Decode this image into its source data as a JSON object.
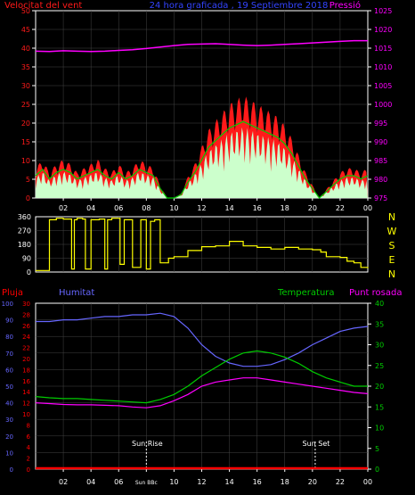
{
  "colors": {
    "background": "#000000",
    "panel_border": "#ffffff",
    "grid": "#444444",
    "wind": "#ff1a1a",
    "wind_gust": "#ccffcc",
    "wind_mean": "#00cc00",
    "pressure": "#ff00ff",
    "direction": "#ffff00",
    "rain": "#ff0000",
    "humidity": "#6666ff",
    "temperature": "#00cc00",
    "dewpoint": "#ff00ff",
    "axis_text": "#ffffff",
    "sun_marker": "#ffffff"
  },
  "panel1": {
    "title": "24 hora graficada , 19 Septiembre 2018",
    "left_label": "Velocitat del vent",
    "right_label": "Pressió"
  },
  "panel2": {
    "compass": [
      "N",
      "W",
      "S",
      "E",
      "N"
    ]
  },
  "panel3": {
    "labels": {
      "rain": "Pluja",
      "humidity": "Humitat",
      "temperature": "Temperatura",
      "dewpoint": "Punt rosada"
    },
    "sunrise": "Sun Rise",
    "sunset": "Sun Set",
    "sun_below": "Sun BBc"
  },
  "chart_data": [
    {
      "type": "line",
      "name": "wind-pressure",
      "title": "24 hora graficada , 19 Septiembre 2018",
      "x_ticks": [
        "02",
        "04",
        "06",
        "08",
        "10",
        "12",
        "14",
        "16",
        "18",
        "20",
        "22",
        "00"
      ],
      "xlim": [
        0,
        24
      ],
      "ylim": [
        0,
        50
      ],
      "y_ticks": [
        "0",
        "5",
        "10",
        "15",
        "20",
        "25",
        "30",
        "35",
        "40",
        "45",
        "50"
      ],
      "y2lim": [
        975,
        1025
      ],
      "y2_ticks": [
        "975",
        "980",
        "985",
        "990",
        "995",
        "1000",
        "1005",
        "1010",
        "1015",
        "1020",
        "1025"
      ],
      "ylabel": "Velocitat del vent",
      "y2label": "Pressió",
      "grid": true,
      "series": [
        {
          "name": "Velocitat del vent",
          "x": [
            0,
            0.5,
            1,
            1.5,
            2,
            2.5,
            3,
            3.5,
            4,
            4.5,
            5,
            5.5,
            6,
            6.5,
            7,
            7.5,
            8,
            8.5,
            9,
            9.5,
            10,
            10.5,
            11,
            11.5,
            12,
            12.5,
            13,
            13.5,
            14,
            14.5,
            15,
            15.5,
            16,
            16.5,
            17,
            17.5,
            18,
            18.5,
            19,
            19.5,
            20,
            20.5,
            21,
            21.5,
            22,
            22.5,
            23,
            23.5,
            24
          ],
          "values": [
            7,
            9,
            6,
            8,
            9,
            8,
            6,
            7,
            8,
            9,
            7,
            6,
            8,
            6,
            7,
            9,
            8,
            7,
            3,
            0,
            0,
            1,
            5,
            8,
            12,
            16,
            18,
            20,
            22,
            23,
            24,
            23,
            22,
            21,
            20,
            19,
            17,
            14,
            10,
            6,
            3,
            0,
            2,
            4,
            6,
            7,
            7,
            6,
            7
          ]
        },
        {
          "name": "Pressió",
          "x": [
            0,
            1,
            2,
            3,
            4,
            5,
            6,
            7,
            8,
            9,
            10,
            11,
            12,
            13,
            14,
            15,
            16,
            17,
            18,
            19,
            20,
            21,
            22,
            23,
            24
          ],
          "values": [
            1014.2,
            1014.1,
            1014.3,
            1014.2,
            1014.1,
            1014.2,
            1014.4,
            1014.6,
            1014.9,
            1015.3,
            1015.7,
            1016.0,
            1016.1,
            1016.2,
            1016.0,
            1015.8,
            1015.7,
            1015.8,
            1016.0,
            1016.2,
            1016.4,
            1016.6,
            1016.8,
            1017.0,
            1017.0
          ]
        }
      ]
    },
    {
      "type": "line",
      "name": "wind-direction",
      "x_ticks": [
        "02",
        "04",
        "06",
        "08",
        "10",
        "12",
        "14",
        "16",
        "18",
        "20",
        "22",
        "00"
      ],
      "xlim": [
        0,
        24
      ],
      "ylim": [
        0,
        360
      ],
      "y_ticks": [
        "0",
        "90",
        "180",
        "270",
        "360"
      ],
      "grid": true,
      "series": [
        {
          "name": "direction",
          "x": [
            0,
            0.8,
            1.0,
            1.5,
            2.0,
            2.6,
            2.8,
            3.0,
            3.4,
            3.6,
            4.0,
            4.6,
            5.0,
            5.2,
            5.5,
            6.1,
            6.4,
            7.0,
            7.3,
            7.6,
            8.0,
            8.3,
            8.6,
            9.0,
            9.6,
            10.0,
            11.0,
            12.0,
            13.0,
            14.0,
            15.0,
            16.0,
            17.0,
            18.0,
            19.0,
            20.0,
            20.6,
            21.0,
            22.0,
            22.5,
            23.0,
            23.5,
            24.0
          ],
          "values": [
            10,
            10,
            340,
            350,
            345,
            20,
            340,
            350,
            345,
            20,
            340,
            345,
            20,
            340,
            350,
            50,
            340,
            30,
            30,
            340,
            20,
            330,
            340,
            60,
            90,
            100,
            140,
            165,
            170,
            200,
            170,
            160,
            150,
            160,
            150,
            145,
            130,
            100,
            95,
            70,
            60,
            30,
            25
          ]
        }
      ]
    },
    {
      "type": "line",
      "name": "rain-humidity-temperature",
      "x_ticks": [
        "02",
        "04",
        "06",
        "Sun BBc",
        "10",
        "12",
        "14",
        "16",
        "18",
        "20",
        "22",
        "00"
      ],
      "xlim": [
        0,
        24
      ],
      "ylim": [
        0,
        30
      ],
      "y_ticks": [
        "0",
        "2",
        "4",
        "6",
        "8",
        "10",
        "12",
        "14",
        "16",
        "18",
        "20",
        "22",
        "24",
        "26",
        "28",
        "30"
      ],
      "humidity_ticks": [
        "0",
        "10",
        "20",
        "30",
        "40",
        "50",
        "60",
        "70",
        "80",
        "90",
        "100"
      ],
      "y2lim": [
        0,
        40
      ],
      "y2_ticks": [
        "0",
        "5",
        "10",
        "15",
        "20",
        "25",
        "30",
        "35",
        "40"
      ],
      "grid": true,
      "annotations": [
        {
          "text": "Sun Rise",
          "x": 8
        },
        {
          "text": "Sun Set",
          "x": 20.2
        }
      ],
      "series": [
        {
          "name": "Pluja",
          "axis": "rain",
          "x": [
            0,
            24
          ],
          "values": [
            0,
            0
          ]
        },
        {
          "name": "Humitat",
          "axis": "humidity",
          "x": [
            0,
            1,
            2,
            3,
            4,
            5,
            6,
            7,
            8,
            9,
            10,
            11,
            12,
            13,
            14,
            15,
            16,
            17,
            18,
            19,
            20,
            21,
            22,
            23,
            24
          ],
          "values": [
            89,
            89,
            90,
            90,
            91,
            92,
            92,
            93,
            93,
            94,
            92,
            85,
            75,
            68,
            64,
            62,
            62,
            63,
            66,
            70,
            75,
            79,
            83,
            85,
            86
          ]
        },
        {
          "name": "Temperatura",
          "axis": "temperature",
          "x": [
            0,
            1,
            2,
            3,
            4,
            5,
            6,
            7,
            8,
            9,
            10,
            11,
            12,
            13,
            14,
            15,
            16,
            17,
            18,
            19,
            20,
            21,
            22,
            23,
            24
          ],
          "values": [
            17.5,
            17.2,
            17.0,
            17.0,
            16.8,
            16.6,
            16.4,
            16.2,
            16.0,
            16.8,
            18.0,
            20.0,
            22.5,
            24.5,
            26.5,
            28.0,
            28.5,
            28.0,
            27.0,
            25.5,
            23.5,
            22.0,
            21.0,
            20.0,
            20.0
          ]
        },
        {
          "name": "Punt rosada",
          "axis": "temperature",
          "x": [
            0,
            1,
            2,
            3,
            4,
            5,
            6,
            7,
            8,
            9,
            10,
            11,
            12,
            13,
            14,
            15,
            16,
            17,
            18,
            19,
            20,
            21,
            22,
            23,
            24
          ],
          "values": [
            16.0,
            15.8,
            15.6,
            15.5,
            15.5,
            15.4,
            15.3,
            15.0,
            14.8,
            15.3,
            16.5,
            18.0,
            20.0,
            21.0,
            21.5,
            22.0,
            22.0,
            21.5,
            21.0,
            20.5,
            20.0,
            19.5,
            19.0,
            18.5,
            18.2
          ]
        }
      ]
    }
  ]
}
